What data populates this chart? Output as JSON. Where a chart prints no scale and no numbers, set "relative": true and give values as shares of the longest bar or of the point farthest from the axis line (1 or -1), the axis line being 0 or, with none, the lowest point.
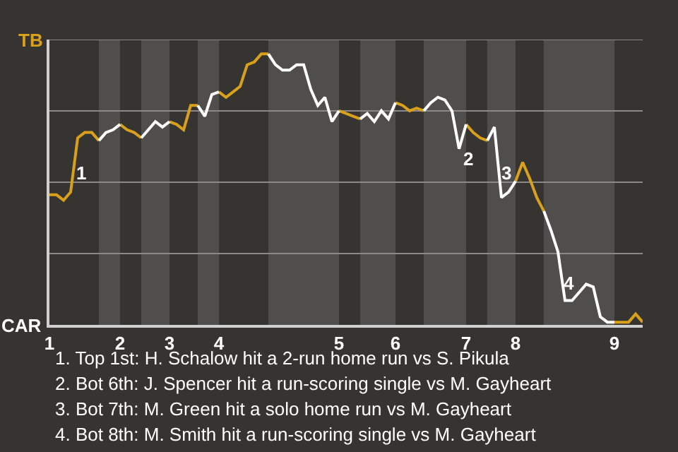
{
  "chart_data": {
    "type": "line",
    "relative": true,
    "categories": [
      "1",
      null,
      null,
      null,
      null,
      null,
      null,
      null,
      null,
      null,
      "2",
      null,
      null,
      null,
      null,
      null,
      null,
      "3",
      null,
      null,
      null,
      null,
      null,
      null,
      "4",
      null,
      null,
      null,
      null,
      null,
      null,
      null,
      null,
      null,
      null,
      null,
      null,
      null,
      null,
      null,
      null,
      "5",
      null,
      null,
      null,
      null,
      null,
      null,
      null,
      "6",
      null,
      null,
      null,
      null,
      null,
      null,
      null,
      null,
      null,
      "7",
      null,
      null,
      null,
      null,
      null,
      null,
      "8",
      null,
      null,
      null,
      null,
      null,
      null,
      null,
      null,
      null,
      null,
      null,
      null,
      null,
      "9",
      null,
      null,
      null,
      null
    ],
    "grid": "y",
    "legend": false,
    "marker": "none",
    "line_style": "solid",
    "series": [
      {
        "color": "#d9a01b",
        "values": [
          0.48,
          0.48,
          0.46,
          0.49,
          0.69,
          0.71,
          0.71,
          0.68,
          null,
          null,
          0.74,
          0.72,
          0.71,
          0.69,
          null,
          null,
          null,
          0.75,
          0.74,
          0.72,
          0.81,
          0.81,
          null,
          null,
          0.86,
          0.84,
          0.86,
          0.88,
          0.96,
          0.97,
          1,
          1,
          null,
          null,
          null,
          null,
          null,
          null,
          null,
          null,
          null,
          0.79,
          0.78,
          0.77,
          0.76,
          null,
          null,
          null,
          null,
          0.82,
          0.81,
          0.79,
          0.8,
          0.79,
          null,
          null,
          null,
          null,
          null,
          0.74,
          0.71,
          0.69,
          0.68,
          null,
          null,
          null,
          0.53,
          0.6,
          0.54,
          0.47,
          0.42,
          null,
          null,
          null,
          null,
          null,
          null,
          null,
          null,
          null,
          0.01,
          0.01,
          0.01,
          0.04,
          0.01
        ]
      },
      {
        "color": "#ffffff",
        "values": [
          null,
          null,
          null,
          null,
          null,
          null,
          null,
          0.68,
          0.71,
          0.72,
          0.74,
          null,
          null,
          0.69,
          0.72,
          0.75,
          0.73,
          0.75,
          null,
          null,
          null,
          0.81,
          0.77,
          0.85,
          0.86,
          null,
          null,
          null,
          null,
          null,
          null,
          1,
          0.96,
          0.94,
          0.94,
          0.96,
          0.96,
          0.87,
          0.81,
          0.84,
          0.75,
          0.79,
          null,
          null,
          0.76,
          0.78,
          0.75,
          0.79,
          0.76,
          0.82,
          null,
          null,
          null,
          0.79,
          0.82,
          0.84,
          0.83,
          0.79,
          0.65,
          0.74,
          null,
          null,
          0.68,
          0.73,
          0.47,
          0.49,
          0.53,
          null,
          null,
          null,
          0.42,
          0.35,
          0.27,
          0.09,
          0.09,
          0.12,
          0.15,
          0.14,
          0.03,
          0.01,
          0.01,
          null,
          null,
          null,
          null
        ]
      }
    ],
    "annotations": [
      "TB",
      "CAR",
      "1",
      "2",
      "3",
      "4",
      "1. Top 1st: H. Schalow hit a 2-run home run vs S. Pikula",
      "2. Bot 6th: J. Spencer hit a run-scoring single vs M. Gayheart",
      "3. Bot 7th: M. Green hit a solo home run vs M. Gayheart",
      "4. Bot 8th: M. Smith hit a run-scoring single vs M. Gayheart"
    ]
  }
}
